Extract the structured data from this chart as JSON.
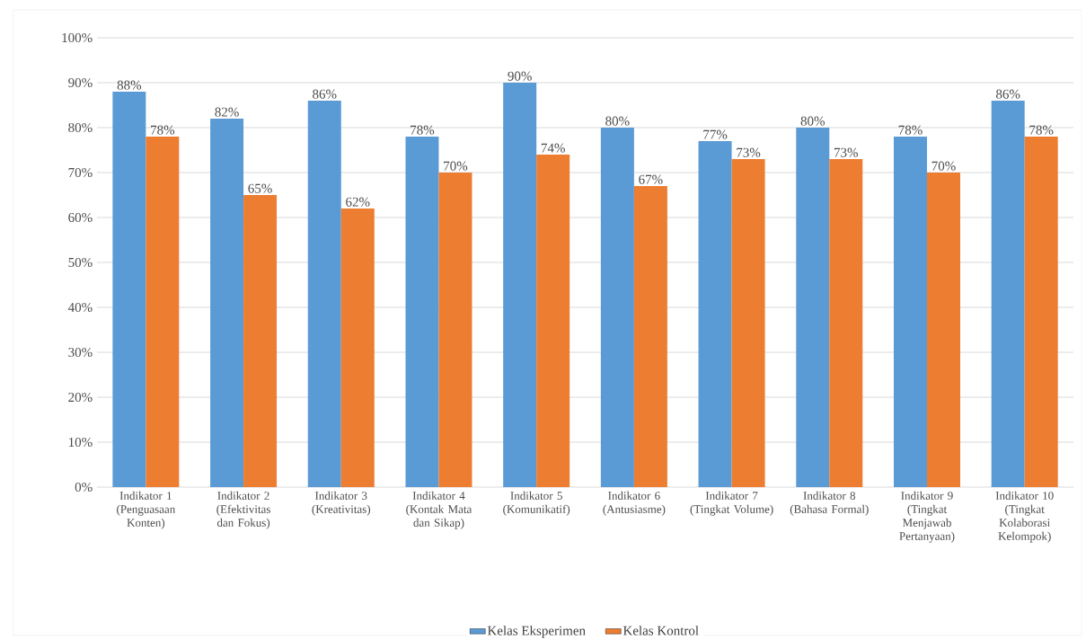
{
  "chart_data": {
    "type": "bar",
    "categories": [
      "Indikator 1 (Penguasaan Konten)",
      "Indikator 2 (Efektivitas dan Fokus)",
      "Indikator 3 (Kreativitas)",
      "Indikator 4 (Kontak Mata dan Sikap)",
      "Indikator 5 (Komunikatif)",
      "Indikator 6 (Antusiasme)",
      "Indikator 7 (Tingkat Volume)",
      "Indikator 8 (Bahasa Formal)",
      "Indikator 9 (Tingkat Menjawab Pertanyaan)",
      "Indikator 10 (Tingkat Kolaborasi Kelompok)"
    ],
    "series": [
      {
        "name": "Kelas Eksperimen",
        "color": "#5b9bd5",
        "values": [
          88,
          82,
          86,
          78,
          90,
          80,
          77,
          80,
          78,
          86
        ],
        "value_labels": [
          "88%",
          "82%",
          "86%",
          "78%",
          "90%",
          "80%",
          "77%",
          "80%",
          "78%",
          "86%"
        ]
      },
      {
        "name": "Kelas Kontrol",
        "color": "#ed7d31",
        "values": [
          78,
          65,
          62,
          70,
          74,
          67,
          73,
          73,
          70,
          78
        ],
        "value_labels": [
          "78%",
          "65%",
          "62%",
          "70%",
          "74%",
          "67%",
          "73%",
          "73%",
          "70%",
          "78%"
        ]
      }
    ],
    "ylim": [
      0,
      100
    ],
    "yticks": [
      {
        "value": 0,
        "label": "0%"
      },
      {
        "value": 10,
        "label": "10%"
      },
      {
        "value": 20,
        "label": "20%"
      },
      {
        "value": 30,
        "label": "30%"
      },
      {
        "value": 40,
        "label": "40%"
      },
      {
        "value": 50,
        "label": "50%"
      },
      {
        "value": 60,
        "label": "60%"
      },
      {
        "value": 70,
        "label": "70%"
      },
      {
        "value": 80,
        "label": "80%"
      },
      {
        "value": 90,
        "label": "90%"
      },
      {
        "value": 100,
        "label": "100%"
      }
    ],
    "grid": "y",
    "legend": "bottom"
  }
}
